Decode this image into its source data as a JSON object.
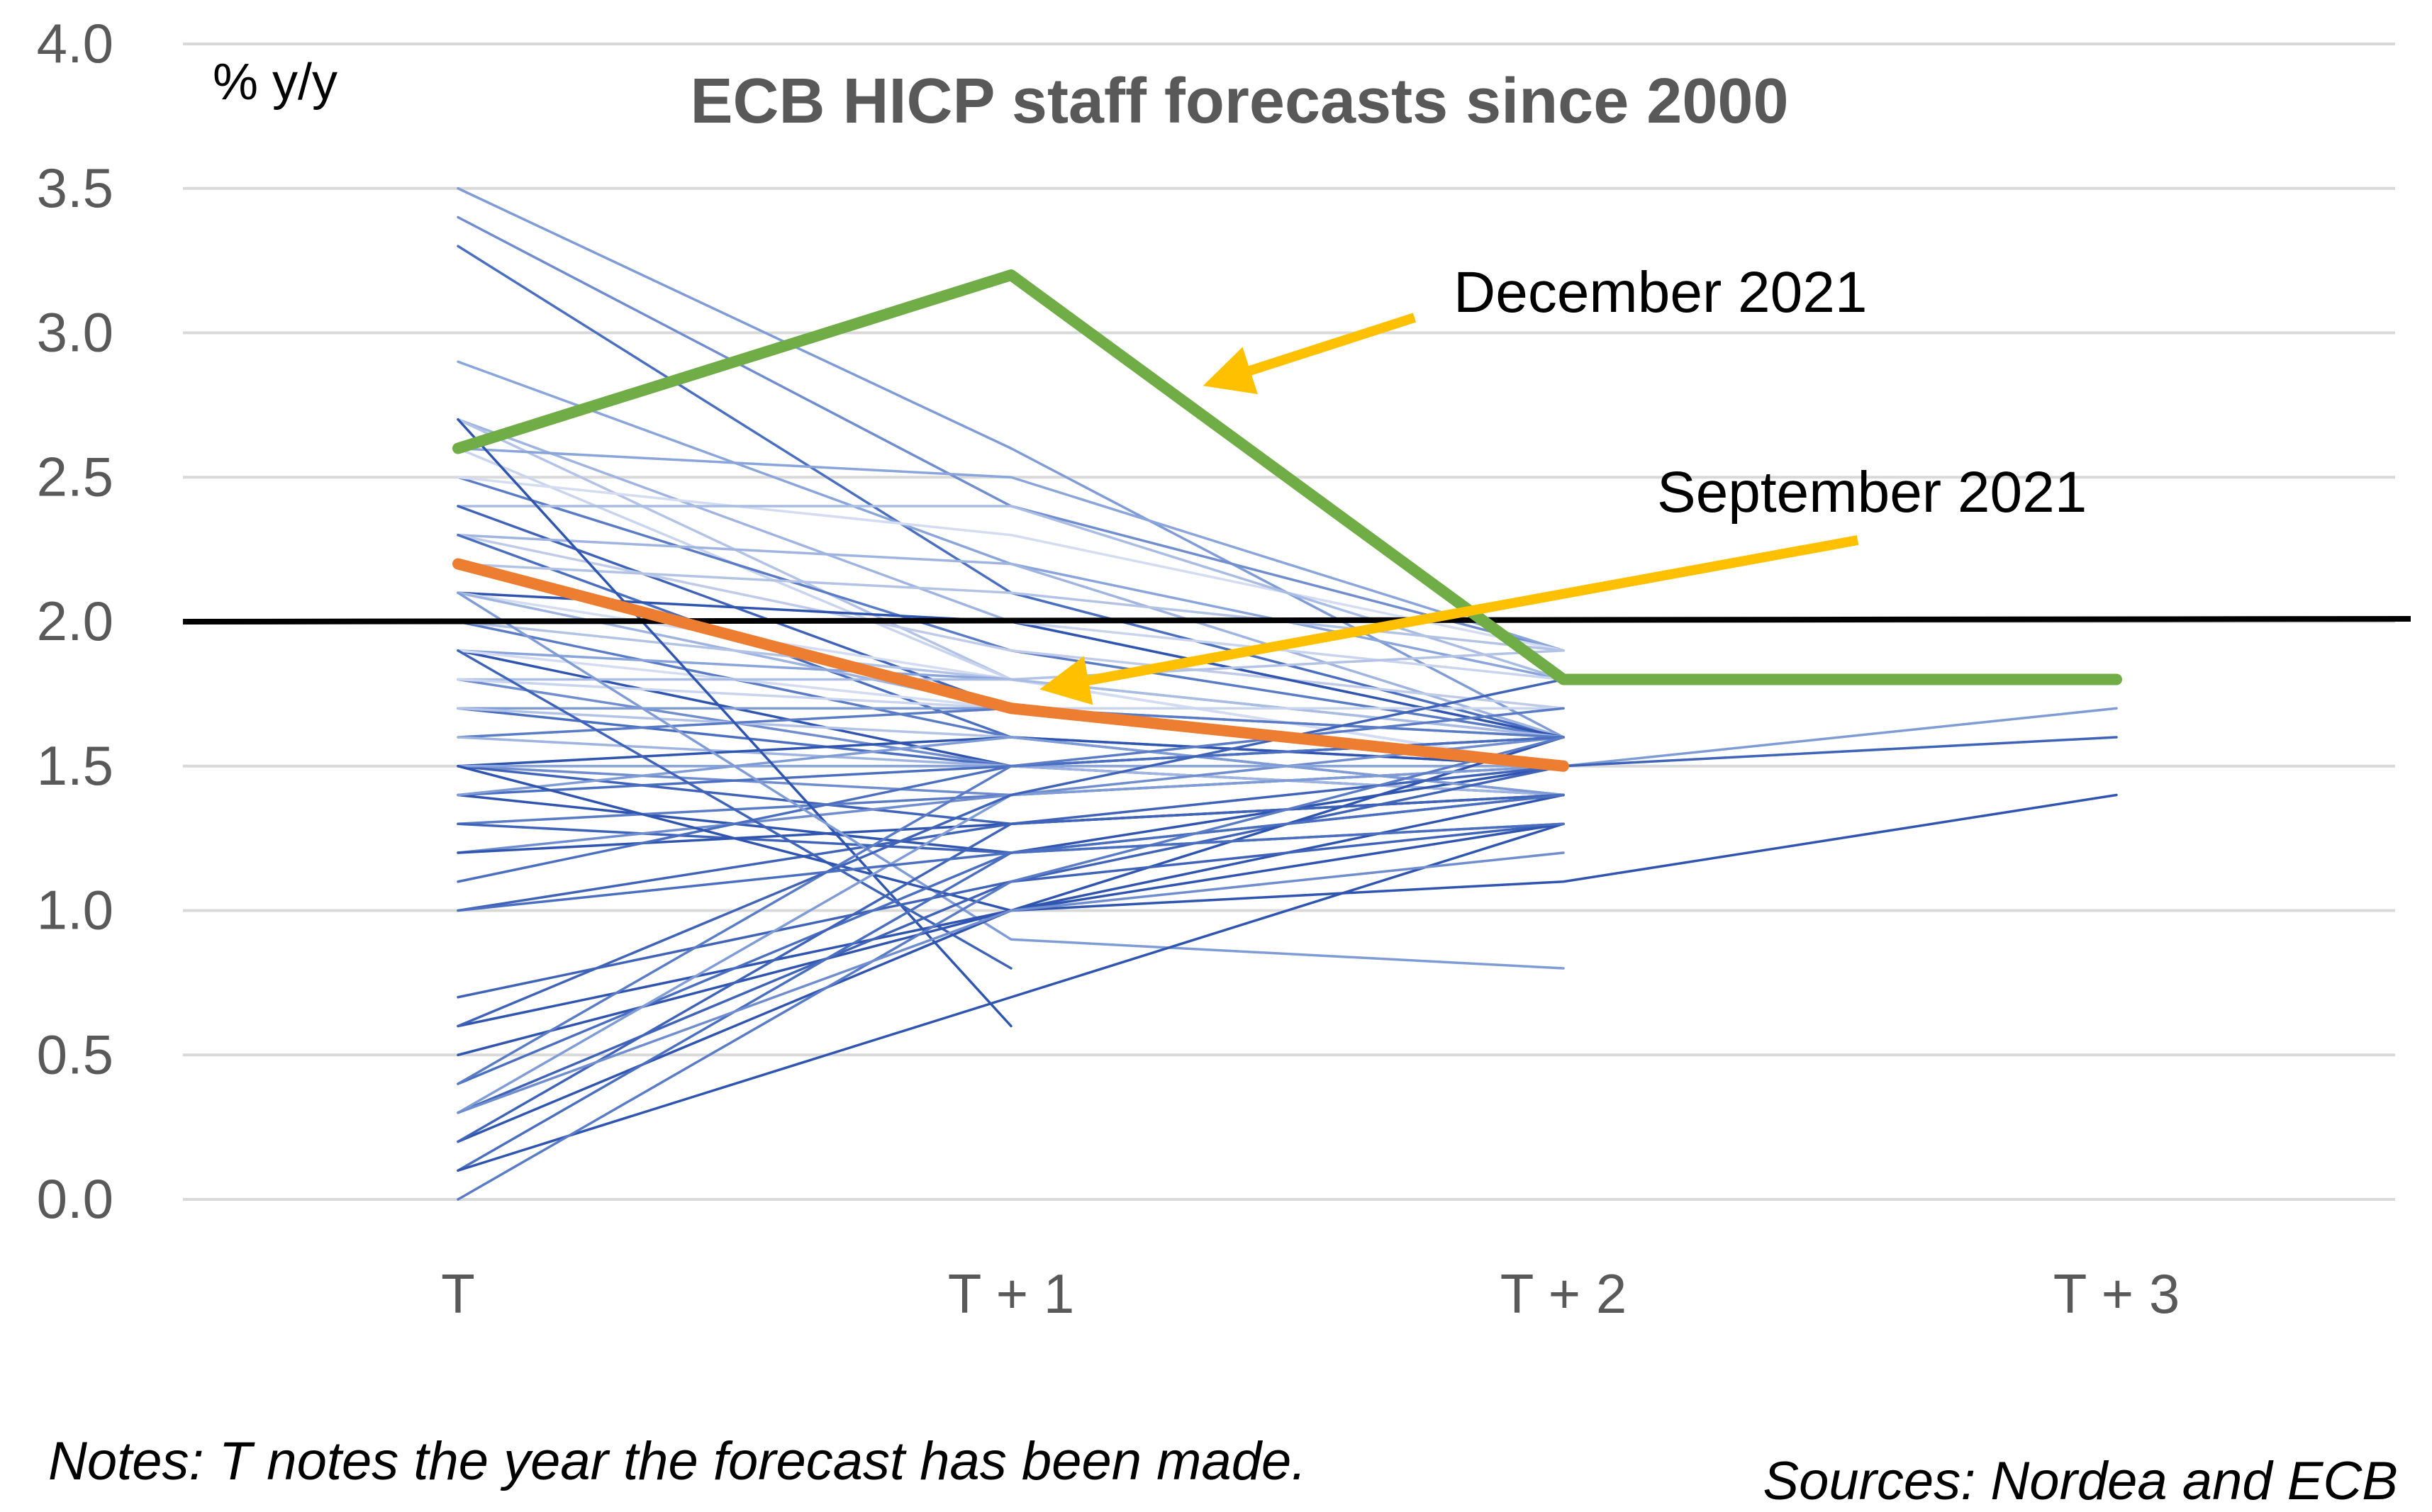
{
  "chart_data": {
    "type": "line",
    "title": "ECB HICP staff forecasts since 2000",
    "unit_label": "% y/y",
    "categories": [
      "T",
      "T + 1",
      "T + 2",
      "T + 3"
    ],
    "ylim": [
      0.0,
      4.0
    ],
    "yticks": [
      "0.0",
      "0.5",
      "1.0",
      "1.5",
      "2.0",
      "2.5",
      "3.0",
      "3.5",
      "4.0"
    ],
    "grid": true,
    "reference_line": {
      "value": 2.0,
      "color": "#000000"
    },
    "background_series": [
      {
        "values": [
          3.5,
          2.6,
          1.6
        ],
        "color": "#7f9cd6"
      },
      {
        "values": [
          3.4,
          2.4,
          1.9
        ],
        "color": "#6f8dcf"
      },
      {
        "values": [
          3.3,
          2.1,
          1.6
        ],
        "color": "#4a6fc0"
      },
      {
        "values": [
          2.9,
          2.2,
          1.8
        ],
        "color": "#8aa5db"
      },
      {
        "values": [
          2.7,
          2.0,
          1.6
        ],
        "color": "#9fb4e0"
      },
      {
        "values": [
          2.7,
          1.8,
          1.5
        ],
        "color": "#b3c3e6"
      },
      {
        "values": [
          2.6,
          2.5,
          1.9
        ],
        "color": "#8aa5db"
      },
      {
        "values": [
          2.6,
          1.8,
          1.5
        ],
        "color": "#c9d4ee"
      },
      {
        "values": [
          2.5,
          1.9,
          1.6
        ],
        "color": "#5a7cc6"
      },
      {
        "values": [
          2.5,
          2.3,
          1.9
        ],
        "color": "#d3dcf1"
      },
      {
        "values": [
          2.4,
          2.4,
          1.8
        ],
        "color": "#a9bce4"
      },
      {
        "values": [
          2.4,
          1.7,
          1.5
        ],
        "color": "#3f63b8"
      },
      {
        "values": [
          2.3,
          2.2,
          1.6
        ],
        "color": "#9fb4e0"
      },
      {
        "values": [
          2.3,
          1.9,
          1.7
        ],
        "color": "#bfcbe9"
      },
      {
        "values": [
          2.3,
          1.6,
          1.4
        ],
        "color": "#4a6fc0"
      },
      {
        "values": [
          2.2,
          2.1,
          1.9
        ],
        "color": "#b3c3e6"
      },
      {
        "values": [
          2.2,
          1.7,
          1.6
        ],
        "color": "#7f9cd6"
      },
      {
        "values": [
          2.1,
          2.0,
          1.6
        ],
        "color": "#2f55b0"
      },
      {
        "values": [
          2.1,
          1.8,
          1.5
        ],
        "color": "#d3dcf1"
      },
      {
        "values": [
          2.1,
          1.7,
          1.7
        ],
        "color": "#9fb4e0"
      },
      {
        "values": [
          2.0,
          2.0,
          1.8
        ],
        "color": "#c9d4ee"
      },
      {
        "values": [
          2.0,
          1.6,
          1.5
        ],
        "color": "#5a7cc6"
      },
      {
        "values": [
          2.0,
          1.8,
          1.9
        ],
        "color": "#b3c3e6"
      },
      {
        "values": [
          1.9,
          1.8,
          1.6
        ],
        "color": "#8aa5db"
      },
      {
        "values": [
          1.9,
          1.5,
          1.4
        ],
        "color": "#2f55b0"
      },
      {
        "values": [
          1.9,
          1.7,
          1.5
        ],
        "color": "#d3dcf1"
      },
      {
        "values": [
          1.8,
          1.8,
          1.6
        ],
        "color": "#a9bce4"
      },
      {
        "values": [
          1.8,
          1.5,
          1.5
        ],
        "color": "#6f8dcf"
      },
      {
        "values": [
          1.8,
          1.7,
          1.7
        ],
        "color": "#c9d4ee"
      },
      {
        "values": [
          1.7,
          1.7,
          1.5
        ],
        "color": "#7f9cd6"
      },
      {
        "values": [
          1.7,
          1.5,
          1.6
        ],
        "color": "#4a6fc0"
      },
      {
        "values": [
          1.7,
          1.6,
          1.5
        ],
        "color": "#b3c3e6"
      },
      {
        "values": [
          1.6,
          1.7,
          1.6
        ],
        "color": "#5a7cc6"
      },
      {
        "values": [
          1.6,
          1.5,
          1.4
        ],
        "color": "#9fb4e0"
      },
      {
        "values": [
          1.5,
          1.6,
          1.5
        ],
        "color": "#2f55b0"
      },
      {
        "values": [
          1.5,
          1.4,
          1.6
        ],
        "color": "#6f8dcf"
      },
      {
        "values": [
          1.5,
          1.3,
          1.4
        ],
        "color": "#3f63b8"
      },
      {
        "values": [
          1.5,
          1.5,
          1.5
        ],
        "color": "#8aa5db"
      },
      {
        "values": [
          1.4,
          1.5,
          1.6
        ],
        "color": "#4a6fc0"
      },
      {
        "values": [
          1.4,
          1.2,
          1.5
        ],
        "color": "#2f55b0"
      },
      {
        "values": [
          1.4,
          1.6,
          1.4
        ],
        "color": "#7f9cd6"
      },
      {
        "values": [
          1.3,
          1.4,
          1.5
        ],
        "color": "#5a7cc6"
      },
      {
        "values": [
          1.3,
          1.2,
          1.3
        ],
        "color": "#3f63b8"
      },
      {
        "values": [
          1.2,
          1.4,
          1.5
        ],
        "color": "#6f8dcf"
      },
      {
        "values": [
          1.2,
          1.3,
          1.4
        ],
        "color": "#2f55b0"
      },
      {
        "values": [
          1.1,
          1.5,
          1.6
        ],
        "color": "#4a6fc0"
      },
      {
        "values": [
          1.0,
          1.3,
          1.4
        ],
        "color": "#3f63b8"
      },
      {
        "values": [
          2.7,
          0.6
        ],
        "color": "#2f55b0"
      },
      {
        "values": [
          2.1,
          0.9,
          0.8
        ],
        "color": "#7f9cd6"
      },
      {
        "values": [
          1.9,
          0.8
        ],
        "color": "#3f63b8"
      },
      {
        "values": [
          1.5,
          1.0,
          1.4
        ],
        "color": "#2f55b0"
      },
      {
        "values": [
          0.7,
          1.1,
          1.5
        ],
        "color": "#3f63b8"
      },
      {
        "values": [
          0.6,
          1.0,
          1.6
        ],
        "color": "#2f55b0"
      },
      {
        "values": [
          0.5,
          1.0,
          1.1,
          1.4
        ],
        "color": "#2f55b0"
      },
      {
        "values": [
          0.4,
          1.2,
          1.4
        ],
        "color": "#4a6fc0"
      },
      {
        "values": [
          0.4,
          1.5,
          1.7
        ],
        "color": "#5a7cc6"
      },
      {
        "values": [
          0.3,
          1.1,
          1.3
        ],
        "color": "#3f63b8"
      },
      {
        "values": [
          0.3,
          1.4,
          1.5,
          1.7
        ],
        "color": "#7f9cd6"
      },
      {
        "values": [
          0.2,
          1.0,
          1.3
        ],
        "color": "#2f55b0"
      },
      {
        "values": [
          0.2,
          1.3,
          1.5,
          1.6
        ],
        "color": "#3f63b8"
      },
      {
        "values": [
          0.1,
          1.2,
          1.4
        ],
        "color": "#4a6fc0"
      },
      {
        "values": [
          0.1,
          0.7,
          1.3
        ],
        "color": "#2f55b0"
      },
      {
        "values": [
          0.0,
          1.1,
          1.6
        ],
        "color": "#5a7cc6"
      },
      {
        "values": [
          0.3,
          1.0,
          1.2
        ],
        "color": "#6f8dcf"
      },
      {
        "values": [
          0.6,
          1.4,
          1.8
        ],
        "color": "#3f63b8"
      },
      {
        "values": [
          1.0,
          1.2,
          1.3
        ],
        "color": "#4a6fc0"
      }
    ],
    "highlighted_series": [
      {
        "name": "December 2021",
        "values": [
          2.6,
          3.2,
          1.8,
          1.8
        ],
        "color": "#70ad47"
      },
      {
        "name": "September 2021",
        "values": [
          2.2,
          1.7,
          1.5
        ],
        "color": "#ed7d31"
      }
    ],
    "annotations": [
      {
        "label": "December 2021",
        "arrow_color": "#ffc000",
        "points_to": "December 2021"
      },
      {
        "label": "September 2021",
        "arrow_color": "#ffc000",
        "points_to": "September 2021"
      }
    ]
  },
  "notes": "Notes: T notes the year the forecast has been made.",
  "sources": "Sources: Nordea and ECB"
}
